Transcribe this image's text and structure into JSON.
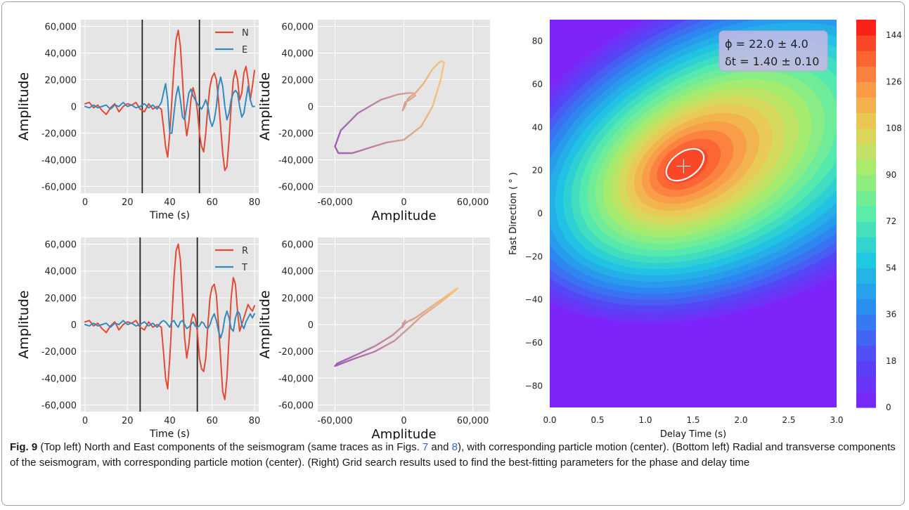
{
  "caption": {
    "label": "Fig. 9",
    "text_1": "  (Top left) North and East components of the seismogram (same traces as in Figs. ",
    "ref_1": "7",
    "and": " and ",
    "ref_2": "8",
    "text_2": "), with corresponding particle motion (center). (Bottom left) Radial and transverse components of the seismogram, with corresponding particle motion (center). (Right) Grid search results used to find the best-fitting parameters for the phase and delay time"
  },
  "colors": {
    "series_red": "#e24a33",
    "series_blue": "#348abd",
    "panel_bg": "#e5e5e5",
    "grid": "#ffffff",
    "marker_line": "#222222",
    "particle_path_start": "#8e44ad",
    "particle_path_end": "#fbc06a"
  },
  "chart_data": [
    {
      "id": "ne",
      "type": "line",
      "xlabel": "Time (s)",
      "ylabel": "Amplitude",
      "xlim": [
        -2,
        82
      ],
      "ylim": [
        -65000,
        65000
      ],
      "xticks": [
        "0",
        "20",
        "40",
        "60",
        "80"
      ],
      "yticks": [
        "60,000",
        "40,000",
        "20,000",
        "0",
        "-20,000",
        "-40,000",
        "-60,000"
      ],
      "markers_x": [
        27,
        54
      ],
      "legend": "top-right",
      "grid": true,
      "series": [
        {
          "name": "N",
          "color": "#e24a33",
          "x": [
            0,
            2,
            4,
            6,
            8,
            10,
            12,
            14,
            16,
            18,
            20,
            22,
            24,
            26,
            28,
            30,
            32,
            34,
            36,
            37,
            38,
            39,
            40,
            41,
            42,
            43,
            44,
            45,
            46,
            47,
            48,
            49,
            50,
            51,
            52,
            53,
            54,
            55,
            56,
            57,
            58,
            59,
            60,
            61,
            62,
            63,
            64,
            65,
            66,
            67,
            68,
            69,
            70,
            71,
            72,
            73,
            74,
            75,
            76,
            77,
            78,
            79,
            80
          ],
          "y": [
            2000,
            3000,
            -1000,
            1000,
            -3000,
            -6000,
            -1000,
            2000,
            -4000,
            0,
            2000,
            1000,
            3000,
            -2000,
            -4000,
            2000,
            -2000,
            0,
            -2000,
            -15000,
            -30000,
            -38000,
            -20000,
            5000,
            30000,
            50000,
            57000,
            45000,
            20000,
            -8000,
            -22000,
            -12000,
            5000,
            14000,
            8000,
            -3000,
            -20000,
            -30000,
            -34000,
            -20000,
            0,
            15000,
            22000,
            25000,
            20000,
            5000,
            -15000,
            -35000,
            -48000,
            -45000,
            -25000,
            0,
            20000,
            27000,
            20000,
            5000,
            10000,
            25000,
            30000,
            20000,
            5000,
            15000,
            27000
          ]
        },
        {
          "name": "E",
          "color": "#348abd",
          "x": [
            0,
            2,
            4,
            6,
            8,
            10,
            12,
            14,
            16,
            18,
            20,
            22,
            24,
            26,
            28,
            30,
            32,
            34,
            36,
            37,
            38,
            39,
            40,
            41,
            42,
            43,
            44,
            45,
            46,
            47,
            48,
            49,
            50,
            51,
            52,
            53,
            54,
            55,
            56,
            57,
            58,
            59,
            60,
            61,
            62,
            63,
            64,
            65,
            66,
            67,
            68,
            69,
            70,
            71,
            72,
            73,
            74,
            75,
            76,
            77,
            78,
            79,
            80
          ],
          "y": [
            0,
            -1000,
            1000,
            -1000,
            0,
            1000,
            -2000,
            1000,
            0,
            3000,
            0,
            1000,
            -1000,
            0,
            2000,
            -1000,
            1000,
            -2000,
            3000,
            10000,
            17000,
            5000,
            -20000,
            -20000,
            -5000,
            8000,
            15000,
            5000,
            -8000,
            -10000,
            0,
            10000,
            13000,
            8000,
            5000,
            2000,
            0,
            -2000,
            1000,
            5000,
            0,
            -10000,
            -15000,
            -10000,
            0,
            15000,
            22000,
            15000,
            0,
            -10000,
            -5000,
            5000,
            10000,
            12000,
            10000,
            0,
            -8000,
            -5000,
            5000,
            15000,
            5000,
            0,
            0
          ]
        }
      ]
    },
    {
      "id": "pm_ne",
      "type": "line",
      "xlabel": "Amplitude",
      "ylabel": "Amplitude",
      "xlim": [
        -75000,
        75000
      ],
      "ylim": [
        -65000,
        65000
      ],
      "xticks": [
        "-60,000",
        "0",
        "60,000"
      ],
      "yticks": [
        "60,000",
        "40,000",
        "20,000",
        "0",
        "-20,000",
        "-40,000",
        "-60,000"
      ],
      "grid": true,
      "series": [
        {
          "x": [
            0,
            2000,
            -1000,
            1000,
            5000,
            10000,
            8000,
            3000,
            -5000,
            -20000,
            -40000,
            -55000,
            -60000,
            -57000,
            -45000,
            -30000,
            -15000,
            0,
            15000,
            25000,
            32000,
            35000,
            32000,
            25000,
            17000,
            10000,
            5000,
            3000
          ],
          "y": [
            0,
            2000,
            -3000,
            3000,
            5000,
            8000,
            10000,
            10000,
            9000,
            5000,
            -5000,
            -18000,
            -30000,
            -35000,
            -35000,
            -31000,
            -27000,
            -25000,
            -15000,
            0,
            20000,
            33000,
            34000,
            28000,
            17000,
            10000,
            7000,
            5000
          ]
        }
      ]
    },
    {
      "id": "rt",
      "type": "line",
      "xlabel": "Time (s)",
      "ylabel": "Amplitude",
      "xlim": [
        -2,
        82
      ],
      "ylim": [
        -65000,
        65000
      ],
      "xticks": [
        "0",
        "20",
        "40",
        "60",
        "80"
      ],
      "yticks": [
        "60,000",
        "40,000",
        "20,000",
        "0",
        "-20,000",
        "-40,000",
        "-60,000"
      ],
      "markers_x": [
        26,
        53
      ],
      "legend": "top-right",
      "grid": true,
      "series": [
        {
          "name": "R",
          "color": "#e24a33",
          "x": [
            0,
            2,
            4,
            6,
            8,
            10,
            12,
            14,
            16,
            18,
            20,
            22,
            24,
            26,
            28,
            30,
            32,
            34,
            36,
            37,
            38,
            39,
            40,
            41,
            42,
            43,
            44,
            45,
            46,
            47,
            48,
            49,
            50,
            51,
            52,
            53,
            54,
            55,
            56,
            57,
            58,
            59,
            60,
            61,
            62,
            63,
            64,
            65,
            66,
            67,
            68,
            69,
            70,
            71,
            72,
            73,
            74,
            75,
            76,
            77,
            78,
            79,
            80
          ],
          "y": [
            2000,
            3000,
            -1000,
            1000,
            -3000,
            -6000,
            -1000,
            2000,
            -4000,
            0,
            2000,
            1000,
            3000,
            -2000,
            -4000,
            2000,
            -2000,
            0,
            -2000,
            -20000,
            -40000,
            -48000,
            -25000,
            5000,
            35000,
            55000,
            60000,
            48000,
            20000,
            -10000,
            -25000,
            -15000,
            2000,
            8000,
            5000,
            -5000,
            -25000,
            -33000,
            -35000,
            -25000,
            0,
            20000,
            28000,
            30000,
            22000,
            0,
            -25000,
            -50000,
            -56000,
            -40000,
            -10000,
            20000,
            35000,
            30000,
            10000,
            -5000,
            0,
            5000,
            10000,
            15000,
            12000,
            10000,
            14000
          ]
        },
        {
          "name": "T",
          "color": "#348abd",
          "x": [
            0,
            2,
            4,
            6,
            8,
            10,
            12,
            14,
            16,
            18,
            20,
            22,
            24,
            26,
            28,
            30,
            32,
            34,
            36,
            37,
            38,
            39,
            40,
            41,
            42,
            43,
            44,
            45,
            46,
            47,
            48,
            49,
            50,
            51,
            52,
            53,
            54,
            55,
            56,
            57,
            58,
            59,
            60,
            61,
            62,
            63,
            64,
            65,
            66,
            67,
            68,
            69,
            70,
            71,
            72,
            73,
            74,
            75,
            76,
            77,
            78,
            79,
            80
          ],
          "y": [
            0,
            -1000,
            1000,
            -1000,
            0,
            1000,
            -2000,
            1000,
            0,
            3000,
            0,
            1000,
            -1000,
            0,
            2000,
            -1000,
            1000,
            -2000,
            2000,
            3000,
            2000,
            0,
            -2000,
            2000,
            3000,
            0,
            -2000,
            2000,
            3000,
            0,
            -3000,
            -2000,
            0,
            2000,
            -1000,
            -2000,
            -1000,
            2000,
            1000,
            -2000,
            -3000,
            0,
            5000,
            8000,
            3000,
            -5000,
            -10000,
            -5000,
            5000,
            10000,
            5000,
            -3000,
            -5000,
            5000,
            10000,
            8000,
            0,
            -3000,
            2000,
            5000,
            8000,
            5000,
            8000
          ]
        }
      ]
    },
    {
      "id": "pm_rt",
      "type": "line",
      "xlabel": "Amplitude",
      "ylabel": "Amplitude",
      "xlim": [
        -75000,
        75000
      ],
      "ylim": [
        -65000,
        65000
      ],
      "xticks": [
        "-60,000",
        "0",
        "60,000"
      ],
      "yticks": [
        "60,000",
        "40,000",
        "20,000",
        "0",
        "-20,000",
        "-40,000",
        "-60,000"
      ],
      "grid": true,
      "series": [
        {
          "x": [
            0,
            1000,
            -1000,
            1000,
            -2000,
            -10000,
            -25000,
            -45000,
            -58000,
            -60000,
            -45000,
            -25000,
            -8000,
            5000,
            15000,
            28000,
            40000,
            47000,
            46000,
            35000,
            20000,
            10000,
            3000,
            0,
            -1000
          ],
          "y": [
            0,
            2000,
            -2000,
            3000,
            -2000,
            -8000,
            -16000,
            -24000,
            -29000,
            -31000,
            -26000,
            -20000,
            -12000,
            -2000,
            6000,
            14000,
            22000,
            27000,
            27000,
            20000,
            11000,
            5000,
            2000,
            0,
            1000
          ]
        }
      ]
    },
    {
      "id": "grid_search",
      "type": "heatmap",
      "xlabel": "Delay Time (s)",
      "ylabel": "Fast Direction ( ° )",
      "xlim": [
        0.0,
        3.0
      ],
      "ylim": [
        -90,
        90
      ],
      "xticks": [
        "0.0",
        "0.5",
        "1.0",
        "1.5",
        "2.0",
        "2.5",
        "3.0"
      ],
      "yticks": [
        "80",
        "60",
        "40",
        "20",
        "0",
        "−20",
        "−40",
        "−60",
        "−80"
      ],
      "colorbar_ticks": [
        "144",
        "126",
        "108",
        "90",
        "72",
        "54",
        "36",
        "18",
        "0"
      ],
      "colorbar_range": [
        0,
        150
      ],
      "best_fit": {
        "delay_time": 1.4,
        "fast_direction": 22.0
      },
      "annotation_phi": "ϕ = 22.0 ± 4.0",
      "annotation_dt": "δt = 1.40 ± 0.10"
    }
  ]
}
